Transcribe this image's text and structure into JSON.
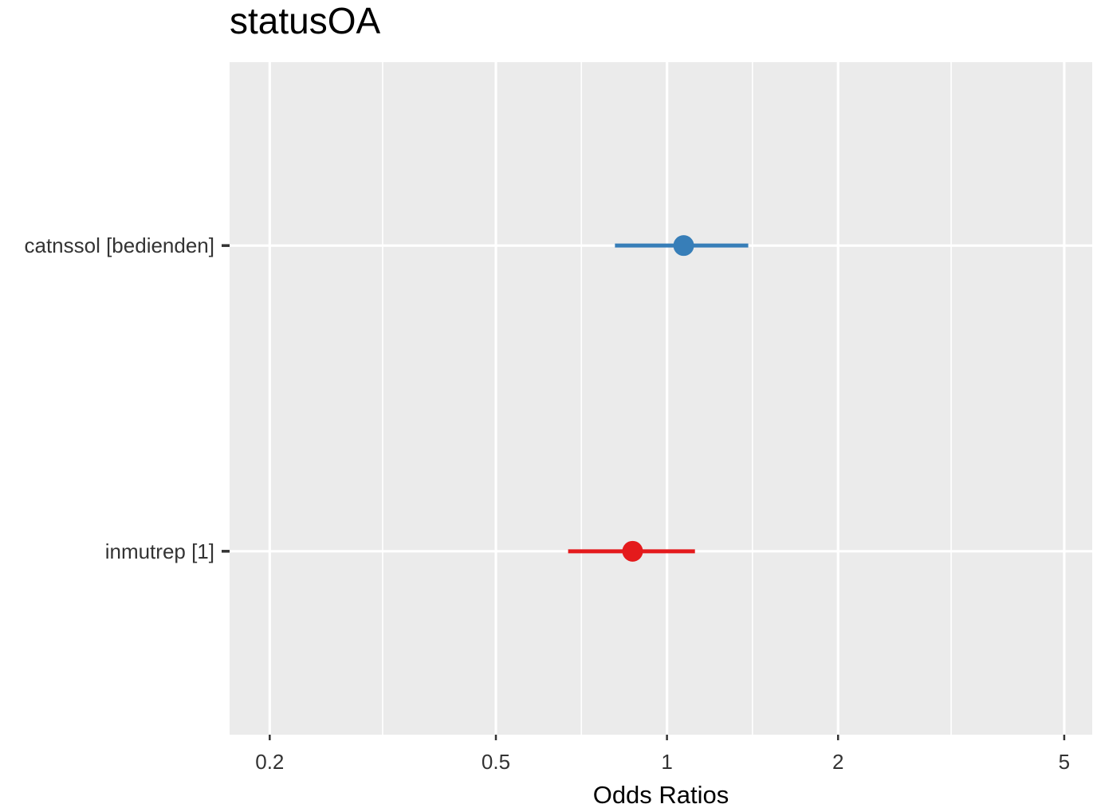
{
  "chart_data": {
    "type": "forest",
    "title": "statusOA",
    "xlabel": "Odds Ratios",
    "ylabel": "",
    "x_scale": "log",
    "xlim": [
      0.17,
      5.6
    ],
    "x_major_ticks": [
      0.2,
      0.5,
      1,
      2,
      5
    ],
    "x_tick_labels": [
      "0.2",
      "0.5",
      "1",
      "2",
      "5"
    ],
    "x_minor_ticks": [
      0.316,
      0.707,
      1.414,
      3.162
    ],
    "grid": true,
    "legend": "none",
    "terms": [
      {
        "label": "catnssol [bedienden]",
        "estimate": 1.07,
        "ci_low": 0.81,
        "ci_high": 1.39,
        "color": "#377eb8"
      },
      {
        "label": "inmutrep [1]",
        "estimate": 0.87,
        "ci_low": 0.67,
        "ci_high": 1.12,
        "color": "#e41a1c"
      }
    ],
    "colors": {
      "panel_background": "#ebebeb",
      "grid": "#ffffff",
      "tick": "#333333"
    }
  }
}
